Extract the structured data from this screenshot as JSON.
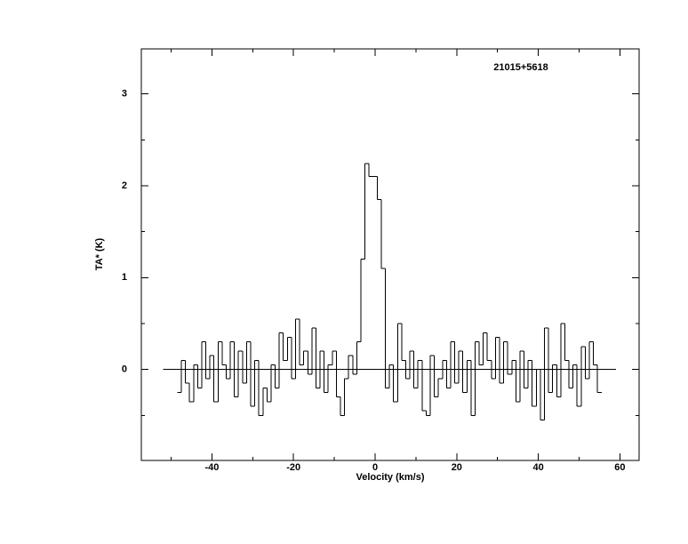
{
  "chart_data": {
    "type": "step",
    "title": "21015+5618",
    "xlabel": "Velocity (km/s)",
    "ylabel": "TA* (K)",
    "x": [
      -48,
      -47,
      -46,
      -45,
      -44,
      -43,
      -42,
      -41,
      -40,
      -39,
      -38,
      -37,
      -36,
      -35,
      -34,
      -33,
      -32,
      -31,
      -30,
      -29,
      -28,
      -27,
      -26,
      -25,
      -24,
      -23,
      -22,
      -21,
      -20,
      -19,
      -18,
      -17,
      -16,
      -15,
      -14,
      -13,
      -12,
      -11,
      -10,
      -9,
      -8,
      -7,
      -6,
      -5,
      -4,
      -3,
      -2,
      -1,
      0,
      1,
      2,
      3,
      4,
      5,
      6,
      7,
      8,
      9,
      10,
      11,
      12,
      13,
      14,
      15,
      16,
      17,
      18,
      19,
      20,
      21,
      22,
      23,
      24,
      25,
      26,
      27,
      28,
      29,
      30,
      31,
      32,
      33,
      34,
      35,
      36,
      37,
      38,
      39,
      40,
      41,
      42,
      43,
      44,
      45,
      46,
      47,
      48,
      49,
      50,
      51,
      52,
      53,
      54,
      55
    ],
    "values": [
      -0.25,
      0.1,
      -0.15,
      -0.35,
      0.05,
      -0.2,
      0.3,
      -0.1,
      0.15,
      -0.35,
      0.3,
      0.05,
      -0.1,
      0.3,
      -0.3,
      0.2,
      -0.15,
      0.3,
      -0.4,
      0.1,
      -0.5,
      -0.2,
      -0.35,
      0.05,
      -0.2,
      0.4,
      0.1,
      0.35,
      -0.1,
      0.55,
      0.05,
      0.2,
      -0.05,
      0.45,
      -0.2,
      0.2,
      -0.25,
      0.05,
      0.2,
      -0.3,
      -0.5,
      -0.1,
      0.15,
      -0.05,
      0.3,
      1.2,
      2.24,
      2.1,
      2.1,
      1.85,
      1.1,
      -0.2,
      0.05,
      -0.35,
      0.5,
      0.1,
      -0.1,
      0.2,
      -0.2,
      0.1,
      -0.45,
      -0.5,
      0.15,
      -0.3,
      -0.1,
      0.1,
      -0.2,
      0.3,
      -0.15,
      0.2,
      -0.25,
      0.1,
      -0.5,
      0.3,
      0.05,
      0.4,
      0.1,
      -0.1,
      0.35,
      -0.15,
      0.3,
      -0.05,
      0.1,
      -0.35,
      0.2,
      -0.2,
      0.1,
      -0.4,
      0.0,
      -0.55,
      0.45,
      -0.25,
      0.05,
      -0.3,
      0.5,
      0.1,
      -0.2,
      0.05,
      -0.4,
      0.25,
      -0.1,
      0.3,
      0.05,
      -0.25
    ],
    "color": "#000000",
    "baseline": {
      "y": 0,
      "xlim": [
        -52,
        59
      ]
    },
    "xlim": [
      -57.3,
      64.7
    ],
    "xticks": [
      -40,
      -20,
      0,
      20,
      40,
      60
    ],
    "xminorticks": [
      -50,
      -30,
      -10,
      10,
      30,
      50
    ],
    "ylim": [
      -0.99,
      3.49
    ],
    "yticks": [
      0,
      1,
      2,
      3
    ],
    "yminorticks": [
      -0.5,
      0.5,
      1.5,
      2.5
    ]
  }
}
